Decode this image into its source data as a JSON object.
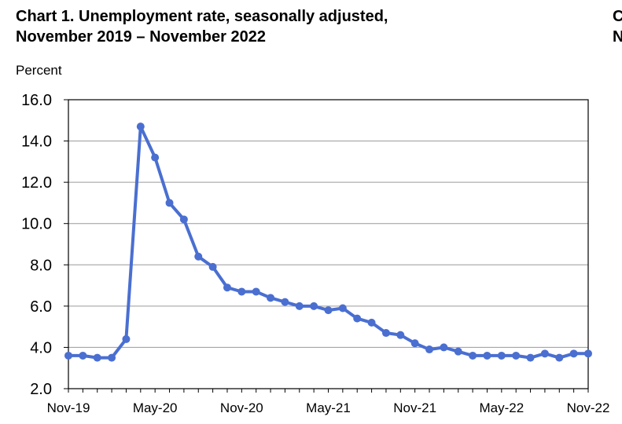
{
  "title_line1": "Chart 1. Unemployment rate, seasonally adjusted,",
  "title_line2": "November 2019 – November 2022",
  "next_chart_initials": [
    "C",
    "N"
  ],
  "chart_data": {
    "type": "line",
    "title": "Chart 1. Unemployment rate, seasonally adjusted, November 2019 – November 2022",
    "xlabel": "",
    "ylabel": "Percent",
    "ylim": [
      2.0,
      16.0
    ],
    "yticks": [
      "2.0",
      "4.0",
      "6.0",
      "8.0",
      "10.0",
      "12.0",
      "14.0",
      "16.0"
    ],
    "xticks": [
      "Nov-19",
      "May-20",
      "Nov-20",
      "May-21",
      "Nov-21",
      "May-22",
      "Nov-22"
    ],
    "grid": "horizontal",
    "color": "#4a6fd1",
    "series": [
      {
        "x": [
          "2019-11",
          "2019-12",
          "2020-01",
          "2020-02",
          "2020-03",
          "2020-04",
          "2020-05",
          "2020-06",
          "2020-07",
          "2020-08",
          "2020-09",
          "2020-10",
          "2020-11",
          "2020-12",
          "2021-01",
          "2021-02",
          "2021-03",
          "2021-04",
          "2021-05",
          "2021-06",
          "2021-07",
          "2021-08",
          "2021-09",
          "2021-10",
          "2021-11",
          "2021-12",
          "2022-01",
          "2022-02",
          "2022-03",
          "2022-04",
          "2022-05",
          "2022-06",
          "2022-07",
          "2022-08",
          "2022-09",
          "2022-10",
          "2022-11"
        ],
        "values": [
          3.6,
          3.6,
          3.5,
          3.5,
          4.4,
          14.7,
          13.2,
          11.0,
          10.2,
          8.4,
          7.9,
          6.9,
          6.7,
          6.7,
          6.4,
          6.2,
          6.0,
          6.0,
          5.8,
          5.9,
          5.4,
          5.2,
          4.7,
          4.6,
          4.2,
          3.9,
          4.0,
          3.8,
          3.6,
          3.6,
          3.6,
          3.6,
          3.5,
          3.7,
          3.5,
          3.7,
          3.7
        ]
      }
    ]
  }
}
